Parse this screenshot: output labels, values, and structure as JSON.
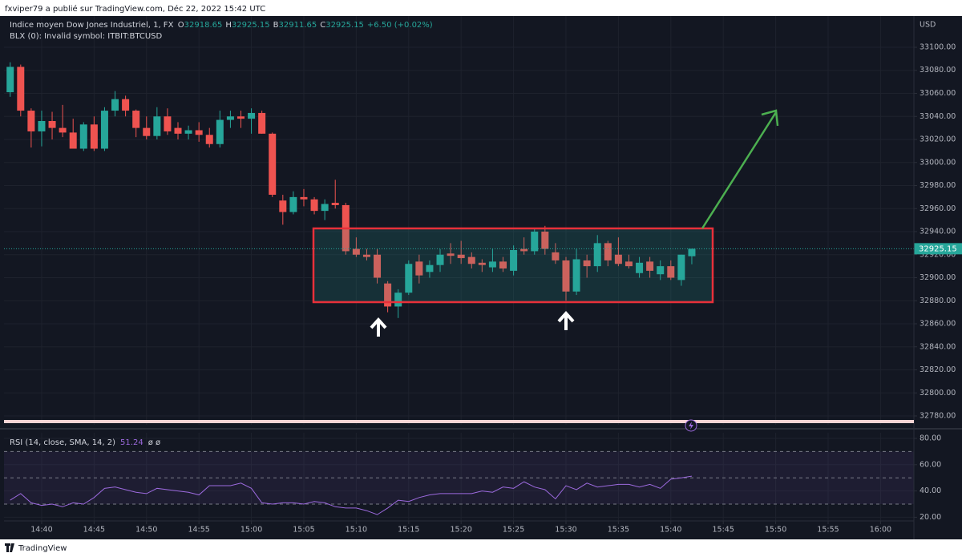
{
  "header": {
    "published": "fxviper79 a publié sur TradingView.com, Déc 22, 2022 15:42 UTC",
    "brand": "TradingView"
  },
  "chart_data": [
    {
      "type": "candlestick",
      "title": "Indice moyen Dow Jones Industriel, 1, FX",
      "subtitle": "BLX (0): Invalid symbol: ITBIT:BTCUSD",
      "ohlc_labels": [
        "O",
        "H",
        "B",
        "C"
      ],
      "change": "+6.50 (+0.02%)",
      "currency": "USD",
      "x": [
        877,
        878,
        879,
        880,
        881,
        882,
        883,
        884,
        885,
        886,
        887,
        888,
        889,
        890,
        891,
        892,
        893,
        894,
        895,
        896,
        897,
        898,
        899,
        900,
        901,
        902,
        903,
        904,
        905,
        906,
        907,
        908,
        909,
        910,
        911,
        912,
        913,
        914,
        915,
        916,
        917,
        918,
        919,
        920,
        921,
        922,
        923,
        924,
        925,
        926,
        927,
        928,
        929,
        930,
        931,
        932,
        933,
        934,
        935,
        936,
        937,
        938,
        939,
        940,
        941,
        942
      ],
      "open": [
        33061,
        33083,
        33045,
        33027,
        33036,
        33030,
        33026,
        33012,
        33033,
        33012,
        33045,
        33055,
        33045,
        33030,
        33023,
        33040,
        33030,
        33025,
        33028,
        33024,
        33016,
        33037,
        33040,
        33038,
        33043,
        33025,
        32967,
        32957,
        32970,
        32968,
        32958,
        32965,
        32963,
        32925,
        32920,
        32920,
        32895,
        32875,
        32887,
        32914,
        32905,
        32911,
        32921,
        32920,
        32918,
        32913,
        32909,
        32914,
        32906,
        32925,
        32923,
        32940,
        32922,
        32915,
        32888,
        32915,
        32910,
        32930,
        32920,
        32914,
        32904,
        32914,
        32903,
        32910,
        32898,
        32918.65
      ],
      "high": [
        33087,
        33085,
        33047,
        33045,
        33044,
        33050,
        33038,
        33035,
        33040,
        33048,
        33062,
        33058,
        33046,
        33040,
        33048,
        33047,
        33035,
        33032,
        33035,
        33030,
        33045,
        33045,
        33045,
        33047,
        33045,
        33026,
        32972,
        32975,
        32977,
        32970,
        32968,
        32985,
        32965,
        32935,
        32925,
        32925,
        32897,
        32890,
        32915,
        32920,
        32915,
        32925,
        32930,
        32932,
        32922,
        32916,
        32925,
        32918,
        32928,
        32935,
        32943,
        32945,
        32930,
        32918,
        32925,
        32920,
        32937,
        32932,
        32935,
        32920,
        32918,
        32918,
        32915,
        32915,
        32920,
        32925.15
      ],
      "low": [
        33057,
        33040,
        33013,
        33014,
        33020,
        33022,
        33014,
        33010,
        33010,
        33010,
        33040,
        33040,
        33022,
        33020,
        33020,
        33024,
        33020,
        33020,
        33018,
        33013,
        33013,
        33030,
        33030,
        33025,
        33025,
        32970,
        32946,
        32955,
        32962,
        32955,
        32950,
        32960,
        32920,
        32918,
        32915,
        32895,
        32870,
        32865,
        32885,
        32895,
        32900,
        32905,
        32912,
        32912,
        32908,
        32905,
        32905,
        32905,
        32902,
        32920,
        32920,
        32920,
        32912,
        32880,
        32885,
        32900,
        32905,
        32910,
        32910,
        32908,
        32900,
        32900,
        32898,
        32898,
        32893,
        32911.65
      ],
      "close": [
        33083,
        33045,
        33027,
        33036,
        33030,
        33026,
        33012,
        33033,
        33012,
        33045,
        33055,
        33045,
        33030,
        33023,
        33040,
        33027,
        33025,
        33028,
        33024,
        33016,
        33037,
        33040,
        33038,
        33043,
        33025,
        32972,
        32957,
        32970,
        32968,
        32958,
        32964,
        32963,
        32923,
        32920,
        32918,
        32900,
        32875,
        32887,
        32912,
        32902,
        32911,
        32920,
        32919,
        32917,
        32912,
        32911,
        32914,
        32908,
        32924,
        32923,
        32940,
        32925,
        32915,
        32888,
        32916,
        32910,
        32930,
        32915,
        32912,
        32910,
        32913,
        32906,
        32910,
        32900,
        32920,
        32925.15
      ],
      "xlim": [
        876.41,
        963.18
      ],
      "ylim": [
        32772.35,
        33127.13
      ],
      "yticks": [
        {
          "value": 32780,
          "label": "32780.00"
        },
        {
          "value": 32800,
          "label": "32800.00"
        },
        {
          "value": 32820,
          "label": "32820.00"
        },
        {
          "value": 32840,
          "label": "32840.00"
        },
        {
          "value": 32860,
          "label": "32860.00"
        },
        {
          "value": 32880,
          "label": "32880.00"
        },
        {
          "value": 32900,
          "label": "32900.00"
        },
        {
          "value": 32920,
          "label": "32920.00"
        },
        {
          "value": 32940,
          "label": "32940.00"
        },
        {
          "value": 32960,
          "label": "32960.00"
        },
        {
          "value": 32980,
          "label": "32980.00"
        },
        {
          "value": 33000,
          "label": "33000.00"
        },
        {
          "value": 33020,
          "label": "33020.00"
        },
        {
          "value": 33040,
          "label": "33040.00"
        },
        {
          "value": 33060,
          "label": "33060.00"
        },
        {
          "value": 33080,
          "label": "33080.00"
        },
        {
          "value": 33100,
          "label": "33100.00"
        }
      ],
      "colors": {
        "up": "#26a69a",
        "down": "#ef5350"
      },
      "grid": true
    },
    {
      "type": "line",
      "title": "RSI (14, close, SMA, 14, 2)",
      "flags": "ø ø",
      "x": [
        877,
        878,
        879,
        880,
        881,
        882,
        883,
        884,
        885,
        886,
        887,
        888,
        889,
        890,
        891,
        892,
        893,
        894,
        895,
        896,
        897,
        898,
        899,
        900,
        901,
        902,
        903,
        904,
        905,
        906,
        907,
        908,
        909,
        910,
        911,
        912,
        913,
        914,
        915,
        916,
        917,
        918,
        919,
        920,
        921,
        922,
        923,
        924,
        925,
        926,
        927,
        928,
        929,
        930,
        931,
        932,
        933,
        934,
        935,
        936,
        937,
        938,
        939,
        940,
        941,
        942
      ],
      "values": [
        33,
        38,
        31,
        29,
        30,
        28,
        31,
        30,
        35,
        42,
        43,
        41,
        39,
        38,
        42,
        41,
        40,
        39,
        37,
        44,
        44,
        44,
        46,
        42,
        31,
        30,
        31,
        31,
        30,
        32,
        31,
        28,
        27,
        27,
        25,
        22,
        27,
        33,
        32,
        35,
        37,
        38,
        38,
        38,
        38,
        40,
        39,
        43,
        42,
        47,
        43,
        41,
        34,
        44,
        41,
        46,
        43,
        44,
        45,
        45,
        43,
        45,
        42,
        49,
        50,
        51.24
      ],
      "color": "#9c6ade",
      "levels": [
        70,
        50,
        30
      ],
      "xlim": [
        876.41,
        963.18
      ],
      "ylim": [
        17.2,
        84.27
      ],
      "yticks": [
        {
          "value": 20,
          "label": "20.00"
        },
        {
          "value": 40,
          "label": "40.00"
        },
        {
          "value": 60,
          "label": "60.00"
        },
        {
          "value": 80,
          "label": "80.00"
        }
      ],
      "xticks": [
        {
          "value": 880,
          "label": "14:40"
        },
        {
          "value": 885,
          "label": "14:45"
        },
        {
          "value": 890,
          "label": "14:50"
        },
        {
          "value": 895,
          "label": "14:55"
        },
        {
          "value": 900,
          "label": "15:00"
        },
        {
          "value": 905,
          "label": "15:05"
        },
        {
          "value": 910,
          "label": "15:10"
        },
        {
          "value": 915,
          "label": "15:15"
        },
        {
          "value": 920,
          "label": "15:20"
        },
        {
          "value": 925,
          "label": "15:25"
        },
        {
          "value": 930,
          "label": "15:30"
        },
        {
          "value": 935,
          "label": "15:35"
        },
        {
          "value": 940,
          "label": "15:40"
        },
        {
          "value": 945,
          "label": "15:45"
        },
        {
          "value": 950,
          "label": "15:50"
        },
        {
          "value": 955,
          "label": "15:55"
        },
        {
          "value": 960,
          "label": "16:00"
        }
      ],
      "grid": true
    }
  ]
}
